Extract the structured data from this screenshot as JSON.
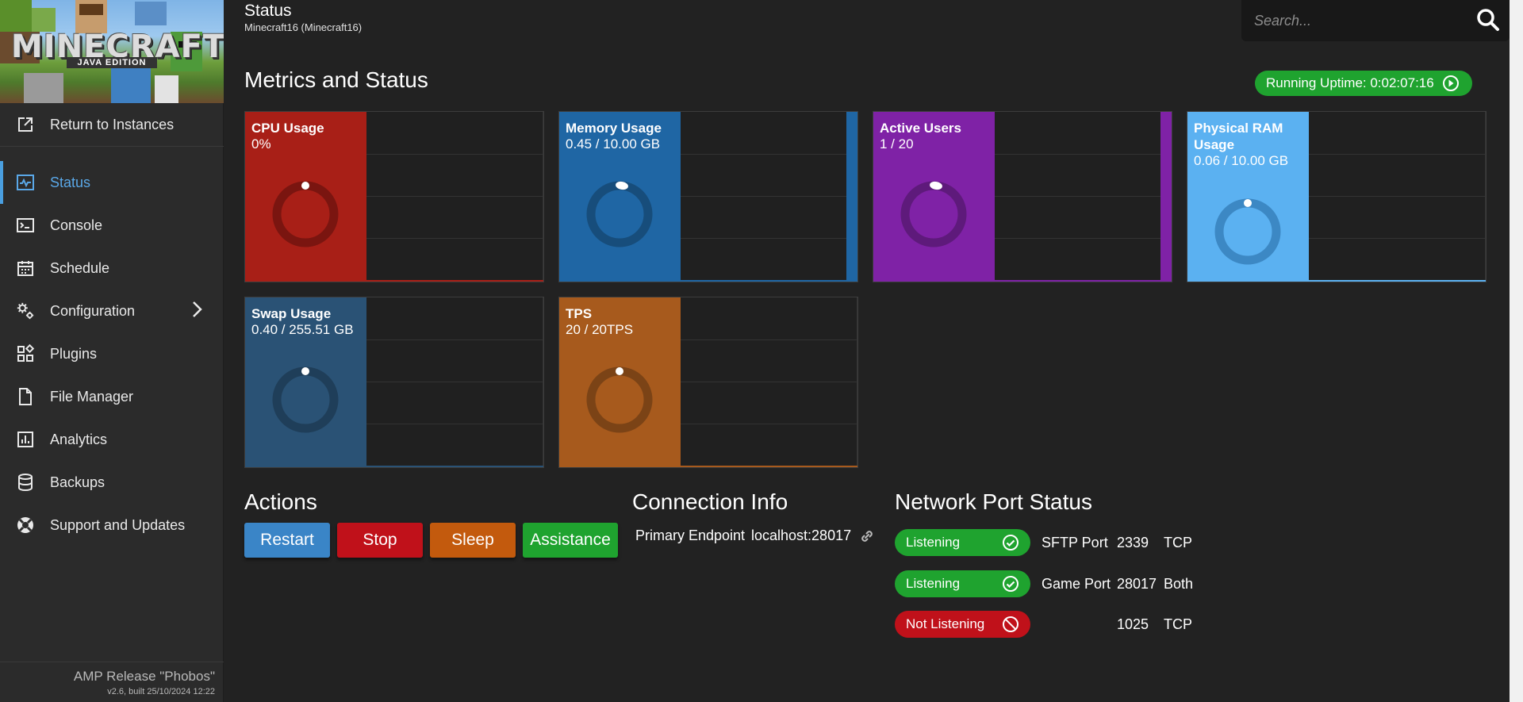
{
  "sidebar": {
    "logo": {
      "wordmark": "MINECRAFT",
      "edition": "JAVA EDITION"
    },
    "return_label": "Return to Instances",
    "items": [
      {
        "label": "Status",
        "icon": "status-icon",
        "active": true
      },
      {
        "label": "Console",
        "icon": "console-icon"
      },
      {
        "label": "Schedule",
        "icon": "calendar-icon"
      },
      {
        "label": "Configuration",
        "icon": "gears-icon",
        "has_submenu": true
      },
      {
        "label": "Plugins",
        "icon": "plugins-icon"
      },
      {
        "label": "File Manager",
        "icon": "file-icon"
      },
      {
        "label": "Analytics",
        "icon": "analytics-icon"
      },
      {
        "label": "Backups",
        "icon": "database-icon"
      },
      {
        "label": "Support and Updates",
        "icon": "lifebuoy-icon"
      }
    ],
    "release": "AMP Release \"Phobos\"",
    "build": "v2.6, built 25/10/2024 12:22"
  },
  "header": {
    "title": "Status",
    "subtitle": "Minecraft16 (Minecraft16)",
    "search_placeholder": "Search..."
  },
  "metrics": {
    "title": "Metrics and Status",
    "uptime": "Running Uptime: 0:02:07:16",
    "cards": [
      {
        "name": "CPU Usage",
        "value": "0%",
        "color": "#a81f17",
        "dark": "#7a1510"
      },
      {
        "name": "Memory Usage",
        "value": "0.45 / 10.00 GB",
        "color": "#1f66a4",
        "dark": "#174d7b"
      },
      {
        "name": "Active Users",
        "value": "1 / 20",
        "color": "#7f22a6",
        "dark": "#5e1a7b"
      },
      {
        "name": "Physical RAM Usage",
        "value": "0.06 / 10.00 GB",
        "color": "#5bb1f1",
        "dark": "#3c88c4"
      },
      {
        "name": "Swap Usage",
        "value": "0.40 / 255.51 GB",
        "color": "#2a5275",
        "dark": "#1f3e59"
      },
      {
        "name": "TPS",
        "value": "20 / 20TPS",
        "color": "#a75a1d",
        "dark": "#7b4316"
      }
    ]
  },
  "actions": {
    "title": "Actions",
    "restart": "Restart",
    "stop": "Stop",
    "sleep": "Sleep",
    "assistance": "Assistance",
    "colors": {
      "restart": "#3a85c7",
      "stop": "#c0111a",
      "sleep": "#c35a0d",
      "assistance": "#1fa32f"
    }
  },
  "connection": {
    "title": "Connection Info",
    "label": "Primary Endpoint",
    "value": "localhost:28017"
  },
  "ports": {
    "title": "Network Port Status",
    "rows": [
      {
        "status": "Listening",
        "ok": true,
        "name": "SFTP Port",
        "port": "2339",
        "protocol": "TCP"
      },
      {
        "status": "Listening",
        "ok": true,
        "name": "Game Port",
        "port": "28017",
        "protocol": "Both"
      },
      {
        "status": "Not Listening",
        "ok": false,
        "name": "",
        "port": "1025",
        "protocol": "TCP"
      }
    ]
  }
}
